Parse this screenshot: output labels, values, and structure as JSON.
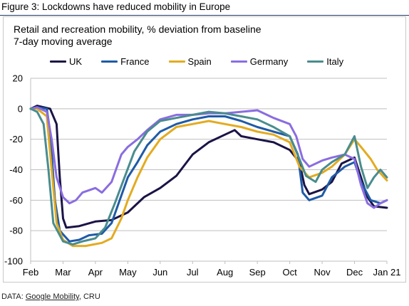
{
  "figure_title": "Figure 3: Lockdowns have reduced mobility in Europe",
  "source": {
    "prefix": "DATA: ",
    "link_text": "Google Mobility",
    "suffix": ", CRU"
  },
  "chart_data": {
    "type": "line",
    "title": "Retail and recreation mobility, % deviation from baseline",
    "subtitle": "7-day moving average",
    "xlabel": "",
    "ylabel": "",
    "ylim": [
      -100,
      20
    ],
    "yticks": [
      20,
      0,
      -20,
      -40,
      -60,
      -80,
      -100
    ],
    "xlim": [
      0,
      11
    ],
    "xticks": [
      {
        "pos": 0,
        "label": "Feb"
      },
      {
        "pos": 1,
        "label": "Mar"
      },
      {
        "pos": 2,
        "label": "Apr"
      },
      {
        "pos": 3,
        "label": "May"
      },
      {
        "pos": 4,
        "label": "Jun"
      },
      {
        "pos": 5,
        "label": "Jul"
      },
      {
        "pos": 6,
        "label": "Aug"
      },
      {
        "pos": 7,
        "label": "Sep"
      },
      {
        "pos": 8,
        "label": "Oct"
      },
      {
        "pos": 9,
        "label": "Nov"
      },
      {
        "pos": 10,
        "label": "Dec"
      },
      {
        "pos": 11,
        "label": "Jan 21"
      }
    ],
    "grid": "horizontal",
    "legend_position": "top",
    "series": [
      {
        "name": "UK",
        "color": "#1a1446",
        "points": [
          [
            0,
            0
          ],
          [
            0.2,
            2
          ],
          [
            0.4,
            1
          ],
          [
            0.6,
            0
          ],
          [
            0.8,
            -10
          ],
          [
            0.9,
            -45
          ],
          [
            1.0,
            -72
          ],
          [
            1.1,
            -78
          ],
          [
            1.5,
            -77
          ],
          [
            2.0,
            -74
          ],
          [
            2.5,
            -73
          ],
          [
            3.0,
            -68
          ],
          [
            3.5,
            -58
          ],
          [
            4.0,
            -52
          ],
          [
            4.5,
            -44
          ],
          [
            5.0,
            -30
          ],
          [
            5.5,
            -22
          ],
          [
            6.0,
            -17
          ],
          [
            6.3,
            -14
          ],
          [
            6.5,
            -18
          ],
          [
            7.0,
            -20
          ],
          [
            7.5,
            -22
          ],
          [
            8.0,
            -27
          ],
          [
            8.3,
            -35
          ],
          [
            8.45,
            -50
          ],
          [
            8.6,
            -56
          ],
          [
            9.0,
            -53
          ],
          [
            9.3,
            -48
          ],
          [
            9.6,
            -36
          ],
          [
            10.0,
            -32
          ],
          [
            10.2,
            -45
          ],
          [
            10.4,
            -58
          ],
          [
            10.6,
            -64
          ],
          [
            11.0,
            -65
          ]
        ]
      },
      {
        "name": "France",
        "color": "#1f5aa6",
        "points": [
          [
            0,
            0
          ],
          [
            0.2,
            1
          ],
          [
            0.5,
            0
          ],
          [
            0.6,
            -15
          ],
          [
            0.75,
            -60
          ],
          [
            0.9,
            -80
          ],
          [
            1.2,
            -87
          ],
          [
            1.5,
            -86
          ],
          [
            1.8,
            -83
          ],
          [
            2.2,
            -82
          ],
          [
            2.5,
            -75
          ],
          [
            2.75,
            -60
          ],
          [
            3.0,
            -45
          ],
          [
            3.3,
            -35
          ],
          [
            3.6,
            -24
          ],
          [
            4.0,
            -15
          ],
          [
            4.5,
            -10
          ],
          [
            5.0,
            -7
          ],
          [
            5.5,
            -5
          ],
          [
            6.0,
            -5
          ],
          [
            6.5,
            -8
          ],
          [
            7.0,
            -12
          ],
          [
            7.5,
            -15
          ],
          [
            8.0,
            -18
          ],
          [
            8.25,
            -30
          ],
          [
            8.4,
            -55
          ],
          [
            8.6,
            -60
          ],
          [
            9.0,
            -57
          ],
          [
            9.3,
            -45
          ],
          [
            9.7,
            -38
          ],
          [
            10.0,
            -35
          ],
          [
            10.2,
            -48
          ],
          [
            10.5,
            -60
          ],
          [
            10.8,
            -62
          ],
          [
            11.0,
            -60
          ]
        ]
      },
      {
        "name": "Spain",
        "color": "#e3ab20",
        "points": [
          [
            0,
            0
          ],
          [
            0.2,
            0
          ],
          [
            0.5,
            -5
          ],
          [
            0.65,
            -40
          ],
          [
            0.8,
            -75
          ],
          [
            1.0,
            -86
          ],
          [
            1.3,
            -90
          ],
          [
            1.7,
            -90
          ],
          [
            2.2,
            -88
          ],
          [
            2.5,
            -85
          ],
          [
            2.8,
            -72
          ],
          [
            3.0,
            -60
          ],
          [
            3.3,
            -45
          ],
          [
            3.6,
            -32
          ],
          [
            4.0,
            -20
          ],
          [
            4.5,
            -12
          ],
          [
            5.0,
            -10
          ],
          [
            5.5,
            -8
          ],
          [
            6.0,
            -10
          ],
          [
            6.5,
            -12
          ],
          [
            7.0,
            -15
          ],
          [
            7.5,
            -17
          ],
          [
            8.0,
            -22
          ],
          [
            8.3,
            -38
          ],
          [
            8.6,
            -45
          ],
          [
            9.0,
            -42
          ],
          [
            9.3,
            -38
          ],
          [
            9.7,
            -30
          ],
          [
            10.0,
            -20
          ],
          [
            10.2,
            -25
          ],
          [
            10.5,
            -33
          ],
          [
            10.7,
            -40
          ],
          [
            11.0,
            -47
          ]
        ]
      },
      {
        "name": "Germany",
        "color": "#8a6de0",
        "points": [
          [
            0,
            0
          ],
          [
            0.2,
            1
          ],
          [
            0.5,
            -2
          ],
          [
            0.65,
            -20
          ],
          [
            0.8,
            -45
          ],
          [
            1.0,
            -58
          ],
          [
            1.2,
            -62
          ],
          [
            1.4,
            -60
          ],
          [
            1.6,
            -55
          ],
          [
            2.0,
            -52
          ],
          [
            2.2,
            -55
          ],
          [
            2.5,
            -48
          ],
          [
            2.8,
            -30
          ],
          [
            3.0,
            -25
          ],
          [
            3.3,
            -20
          ],
          [
            3.6,
            -14
          ],
          [
            4.0,
            -7
          ],
          [
            4.5,
            -4
          ],
          [
            5.0,
            -4
          ],
          [
            5.5,
            -3
          ],
          [
            6.0,
            -3
          ],
          [
            6.5,
            -2
          ],
          [
            7.0,
            -1
          ],
          [
            7.5,
            -6
          ],
          [
            8.0,
            -10
          ],
          [
            8.2,
            -18
          ],
          [
            8.4,
            -33
          ],
          [
            8.6,
            -38
          ],
          [
            9.0,
            -34
          ],
          [
            9.3,
            -32
          ],
          [
            9.7,
            -30
          ],
          [
            10.0,
            -33
          ],
          [
            10.2,
            -50
          ],
          [
            10.4,
            -62
          ],
          [
            10.6,
            -65
          ],
          [
            10.8,
            -62
          ],
          [
            11.0,
            -60
          ]
        ]
      },
      {
        "name": "Italy",
        "color": "#4a8c8e",
        "points": [
          [
            0,
            0
          ],
          [
            0.2,
            -2
          ],
          [
            0.4,
            -10
          ],
          [
            0.55,
            -40
          ],
          [
            0.7,
            -75
          ],
          [
            1.0,
            -87
          ],
          [
            1.3,
            -89
          ],
          [
            1.6,
            -87
          ],
          [
            2.0,
            -85
          ],
          [
            2.3,
            -78
          ],
          [
            2.6,
            -62
          ],
          [
            2.9,
            -45
          ],
          [
            3.2,
            -28
          ],
          [
            3.6,
            -15
          ],
          [
            4.0,
            -8
          ],
          [
            4.5,
            -6
          ],
          [
            5.0,
            -4
          ],
          [
            5.5,
            -2
          ],
          [
            6.0,
            -3
          ],
          [
            6.5,
            -5
          ],
          [
            7.0,
            -7
          ],
          [
            7.5,
            -12
          ],
          [
            8.0,
            -18
          ],
          [
            8.3,
            -33
          ],
          [
            8.5,
            -44
          ],
          [
            8.8,
            -48
          ],
          [
            9.0,
            -40
          ],
          [
            9.3,
            -35
          ],
          [
            9.7,
            -30
          ],
          [
            10.0,
            -18
          ],
          [
            10.2,
            -38
          ],
          [
            10.4,
            -52
          ],
          [
            10.6,
            -45
          ],
          [
            10.8,
            -40
          ],
          [
            11.0,
            -45
          ]
        ]
      }
    ]
  }
}
